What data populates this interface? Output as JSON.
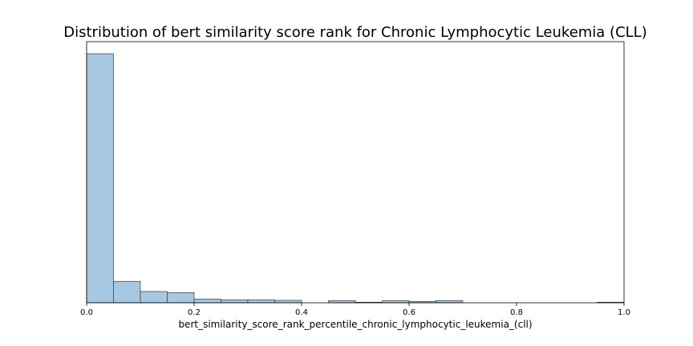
{
  "chart_data": {
    "type": "bar",
    "title": "Distribution of bert similarity score rank for Chronic Lymphocytic Leukemia (CLL)",
    "xlabel": "bert_similarity_score_rank_percentile_chronic_lymphocytic_leukemia_(cll)",
    "ylabel": "",
    "bin_width": 0.05,
    "bin_starts": [
      0.0,
      0.05,
      0.1,
      0.15,
      0.2,
      0.25,
      0.3,
      0.35,
      0.4,
      0.45,
      0.5,
      0.55,
      0.6,
      0.65,
      0.7,
      0.75,
      0.8,
      0.85,
      0.9,
      0.95
    ],
    "values": [
      93,
      8,
      4.2,
      3.8,
      1.4,
      1.1,
      1.1,
      0.9,
      0,
      0.8,
      0.2,
      0.8,
      0.5,
      0.8,
      0,
      0,
      0,
      0,
      0,
      0.2
    ],
    "xlim": [
      0,
      1
    ],
    "ylim": [
      0,
      97.5
    ],
    "x_ticks": [
      "0.0",
      "0.2",
      "0.4",
      "0.6",
      "0.8",
      "1.0"
    ],
    "x_tick_values": [
      0,
      0.2,
      0.4,
      0.6,
      0.8,
      1.0
    ],
    "y_ticks_shown": false,
    "grid": false,
    "bar_color": "#a6c8e0",
    "bar_edge_color": "#3d3d3d"
  }
}
